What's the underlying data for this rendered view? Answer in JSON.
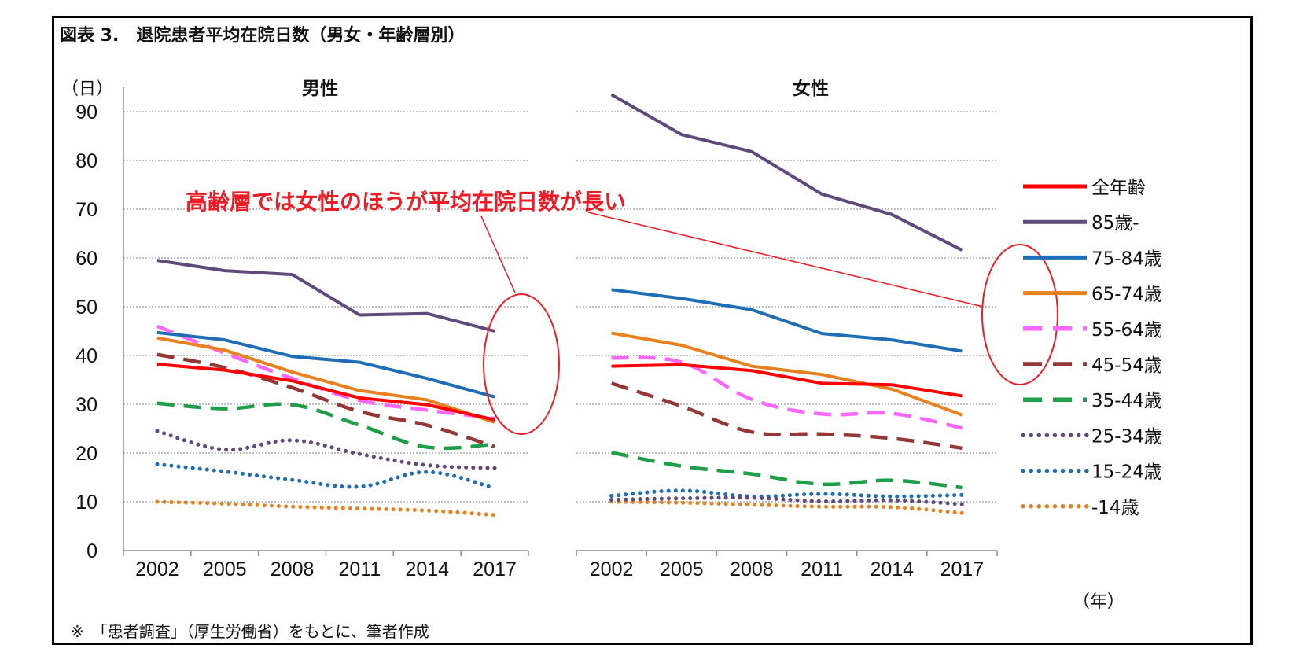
{
  "figure": {
    "title": "図表 3.　退院患者平均在院日数（男女・年齢層別）",
    "y_unit": "（日）",
    "x_unit": "（年）",
    "note": "※　「患者調査」（厚生労働省）をもとに、筆者作成",
    "annotation": "高齢層では女性のほうが平均在院日数が長い",
    "colors": {
      "annotation": "#ee1c25",
      "grid": "#9a9a9a",
      "axis": "#888888"
    }
  },
  "chart_data": {
    "type": "line",
    "ylim": [
      0,
      90
    ],
    "yticks": [
      0,
      10,
      20,
      30,
      40,
      50,
      60,
      70,
      80,
      90
    ],
    "legend_position": "right",
    "grid": true,
    "series_styles": [
      {
        "name": "全年齢",
        "color": "#ff0000",
        "style": "solid"
      },
      {
        "name": "85歳-",
        "color": "#604a7b",
        "style": "solid"
      },
      {
        "name": "75-84歳",
        "color": "#1f6eb5",
        "style": "solid"
      },
      {
        "name": "65-74歳",
        "color": "#e8801e",
        "style": "solid"
      },
      {
        "name": "55-64歳",
        "color": "#ff66ff",
        "style": "dash"
      },
      {
        "name": "45-54歳",
        "color": "#953735",
        "style": "dash"
      },
      {
        "name": "35-44歳",
        "color": "#1e9e47",
        "style": "dash"
      },
      {
        "name": "25-34歳",
        "color": "#604a7b",
        "style": "dot"
      },
      {
        "name": "15-24歳",
        "color": "#1f6eb5",
        "style": "dot"
      },
      {
        "name": "-14歳",
        "color": "#e8801e",
        "style": "dot"
      }
    ],
    "panels": [
      {
        "title": "男性",
        "categories": [
          "2002",
          "2005",
          "2008",
          "2011",
          "2014",
          "2017"
        ],
        "series": [
          {
            "name": "全年齢",
            "values": [
              38.2,
              37.0,
              34.8,
              31.3,
              29.9,
              26.8
            ]
          },
          {
            "name": "85歳-",
            "values": [
              59.5,
              57.4,
              56.6,
              48.3,
              48.6,
              45.0
            ]
          },
          {
            "name": "75-84歳",
            "values": [
              44.7,
              43.2,
              39.8,
              38.6,
              35.3,
              31.5
            ]
          },
          {
            "name": "65-74歳",
            "values": [
              43.6,
              41.1,
              36.6,
              32.8,
              30.9,
              26.3
            ]
          },
          {
            "name": "55-64歳",
            "values": [
              46.0,
              40.5,
              35.3,
              30.8,
              28.8,
              27.1
            ]
          },
          {
            "name": "45-54歳",
            "values": [
              40.2,
              37.5,
              33.4,
              28.5,
              25.7,
              21.3
            ]
          },
          {
            "name": "35-44歳",
            "values": [
              30.2,
              29.1,
              29.9,
              25.7,
              21.2,
              21.8
            ]
          },
          {
            "name": "25-34歳",
            "values": [
              24.5,
              20.7,
              22.6,
              19.8,
              17.5,
              16.9
            ]
          },
          {
            "name": "15-24歳",
            "values": [
              17.7,
              16.2,
              14.5,
              13.1,
              16.1,
              12.8
            ]
          },
          {
            "name": "-14歳",
            "values": [
              10.0,
              9.6,
              9.0,
              8.6,
              8.2,
              7.3
            ]
          }
        ]
      },
      {
        "title": "女性",
        "categories": [
          "2002",
          "2005",
          "2008",
          "2011",
          "2014",
          "2017"
        ],
        "series": [
          {
            "name": "全年齢",
            "values": [
              37.8,
              38.1,
              36.9,
              34.3,
              34.0,
              31.7
            ]
          },
          {
            "name": "85歳-",
            "values": [
              93.5,
              85.3,
              81.8,
              73.1,
              68.9,
              61.6
            ]
          },
          {
            "name": "75-84歳",
            "values": [
              53.5,
              51.7,
              49.4,
              44.5,
              43.2,
              40.9
            ]
          },
          {
            "name": "65-74歳",
            "values": [
              44.6,
              42.1,
              37.8,
              36.1,
              33.1,
              27.8
            ]
          },
          {
            "name": "55-64歳",
            "values": [
              39.5,
              38.6,
              31.0,
              28.0,
              28.1,
              25.1
            ]
          },
          {
            "name": "45-54歳",
            "values": [
              34.3,
              29.6,
              24.3,
              23.9,
              23.0,
              21.0
            ]
          },
          {
            "name": "35-44歳",
            "values": [
              20.1,
              17.3,
              15.7,
              13.6,
              14.4,
              12.9
            ]
          },
          {
            "name": "25-34歳",
            "values": [
              10.4,
              10.7,
              10.8,
              10.1,
              10.3,
              9.5
            ]
          },
          {
            "name": "15-24歳",
            "values": [
              11.2,
              12.3,
              11.1,
              11.6,
              11.1,
              11.4
            ]
          },
          {
            "name": "-14歳",
            "values": [
              10.0,
              9.8,
              9.4,
              9.0,
              8.9,
              7.7
            ]
          }
        ]
      }
    ]
  }
}
